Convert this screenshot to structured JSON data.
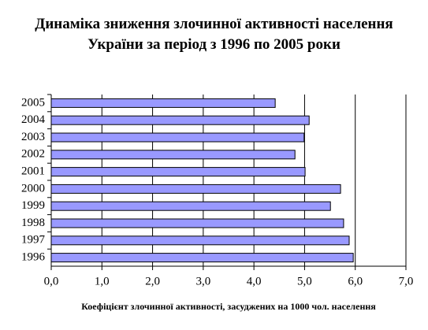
{
  "chart_data": {
    "type": "hbar",
    "title": "Динаміка зниження злочинної активності населення України за період з 1996 по 2005 роки",
    "x_label": "Коефіцієнт злочинної активності, засуджених на 1000 чол. населення",
    "categories": [
      "2005",
      "2004",
      "2003",
      "2002",
      "2001",
      "2000",
      "1999",
      "1998",
      "1997",
      "1996"
    ],
    "values": [
      4.42,
      5.09,
      4.99,
      4.81,
      5.01,
      5.71,
      5.51,
      5.77,
      5.88,
      5.96
    ],
    "color": "#9999ff",
    "xlim": [
      0,
      7
    ],
    "xticks": [
      {
        "value": 0,
        "label": "0,0"
      },
      {
        "value": 1,
        "label": "1,0"
      },
      {
        "value": 2,
        "label": "2,0"
      },
      {
        "value": 3,
        "label": "3,0"
      },
      {
        "value": 4,
        "label": "4,0"
      },
      {
        "value": 5,
        "label": "5,0"
      },
      {
        "value": 6,
        "label": "6,0"
      },
      {
        "value": 7,
        "label": "7,0"
      }
    ],
    "grid": true
  }
}
